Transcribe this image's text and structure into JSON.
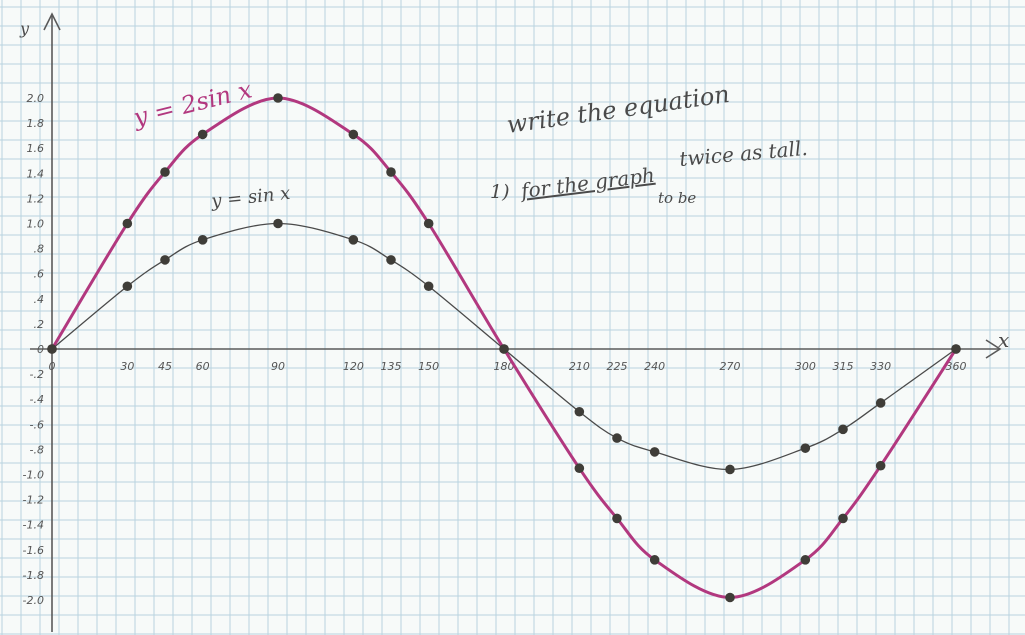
{
  "colors": {
    "paper": "#f7faf9",
    "grid": "#b9d3df",
    "pencil": "#4a4a4a",
    "magenta": "#b2387f",
    "dot": "#3f3d38"
  },
  "notes": {
    "line1": "write the equation",
    "line2_prefix": "1)",
    "line2_text": "for the graph",
    "line2_suffix": "twice as tall.",
    "insert": "to be"
  },
  "chart_data": {
    "type": "line",
    "title": "",
    "xlabel": "x",
    "ylabel": "y",
    "xlim": [
      0,
      360
    ],
    "ylim": [
      -2.0,
      2.0
    ],
    "grid": true,
    "x_ticks": [
      {
        "value": 0,
        "label": "0"
      },
      {
        "value": 30,
        "label": "30"
      },
      {
        "value": 45,
        "label": "45"
      },
      {
        "value": 60,
        "label": "60"
      },
      {
        "value": 90,
        "label": "90"
      },
      {
        "value": 120,
        "label": "120"
      },
      {
        "value": 135,
        "label": "135"
      },
      {
        "value": 150,
        "label": "150"
      },
      {
        "value": 180,
        "label": "180"
      },
      {
        "value": 210,
        "label": "210"
      },
      {
        "value": 225,
        "label": "225"
      },
      {
        "value": 240,
        "label": "240"
      },
      {
        "value": 270,
        "label": "270"
      },
      {
        "value": 300,
        "label": "300"
      },
      {
        "value": 315,
        "label": "315"
      },
      {
        "value": 330,
        "label": "330"
      },
      {
        "value": 360,
        "label": "360"
      }
    ],
    "y_ticks": [
      {
        "value": 2.0,
        "label": "2.0"
      },
      {
        "value": 1.8,
        "label": "1.8"
      },
      {
        "value": 1.6,
        "label": "1.6"
      },
      {
        "value": 1.4,
        "label": "1.4"
      },
      {
        "value": 1.2,
        "label": "1.2"
      },
      {
        "value": 1.0,
        "label": "1.0"
      },
      {
        "value": 0.8,
        "label": ".8"
      },
      {
        "value": 0.6,
        "label": ".6"
      },
      {
        "value": 0.4,
        "label": ".4"
      },
      {
        "value": 0.2,
        "label": ".2"
      },
      {
        "value": 0.0,
        "label": "0"
      },
      {
        "value": -0.2,
        "label": "-.2"
      },
      {
        "value": -0.4,
        "label": "-.4"
      },
      {
        "value": -0.6,
        "label": "-.6"
      },
      {
        "value": -0.8,
        "label": "-.8"
      },
      {
        "value": -1.0,
        "label": "-1.0"
      },
      {
        "value": -1.2,
        "label": "-1.2"
      },
      {
        "value": -1.4,
        "label": "-1.4"
      },
      {
        "value": -1.6,
        "label": "-1.6"
      },
      {
        "value": -1.8,
        "label": "-1.8"
      },
      {
        "value": -2.0,
        "label": "-2.0"
      }
    ],
    "x": [
      0,
      30,
      45,
      60,
      90,
      120,
      135,
      150,
      180,
      210,
      225,
      240,
      270,
      300,
      315,
      330,
      360
    ],
    "series": [
      {
        "name": "y = sin x",
        "color": "#4a4a4a",
        "values": [
          0,
          0.5,
          0.71,
          0.87,
          1.0,
          0.87,
          0.71,
          0.5,
          0,
          -0.5,
          -0.71,
          -0.82,
          -0.96,
          -0.79,
          -0.64,
          -0.43,
          0
        ]
      },
      {
        "name": "y = 2sin x",
        "color": "#b2387f",
        "values": [
          0,
          1.0,
          1.41,
          1.71,
          2.0,
          1.71,
          1.41,
          1.0,
          0,
          -0.95,
          -1.35,
          -1.68,
          -1.98,
          -1.68,
          -1.35,
          -0.93,
          0
        ]
      }
    ]
  }
}
